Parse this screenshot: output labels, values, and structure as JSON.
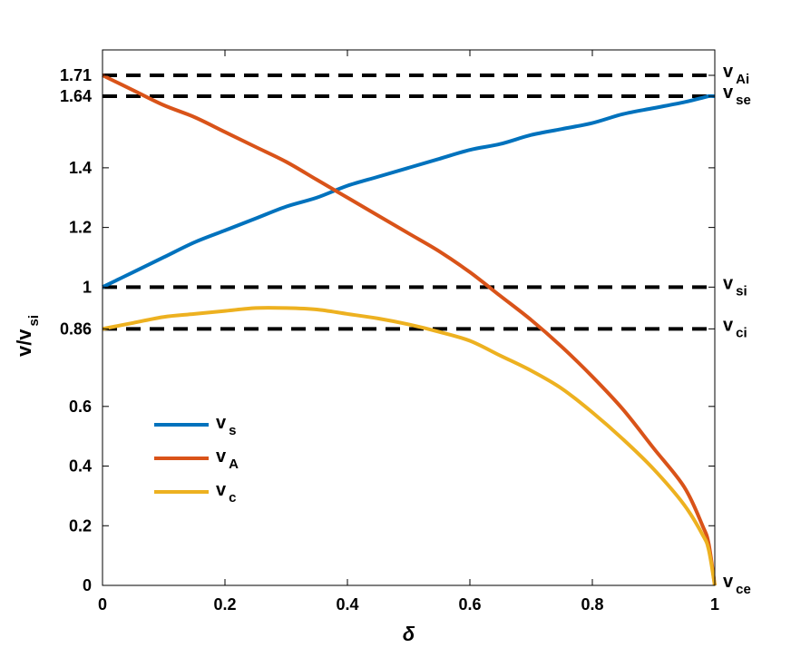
{
  "chart_data": {
    "type": "line",
    "title": "",
    "xlabel": "δ",
    "ylabel": {
      "main": "v/v",
      "sub": "si"
    },
    "xlim": [
      0,
      1
    ],
    "ylim": [
      0,
      1.71
    ],
    "grid": false,
    "legend_position": "bottom-left",
    "xticks": [
      {
        "value": 0,
        "label": "0"
      },
      {
        "value": 0.2,
        "label": "0.2"
      },
      {
        "value": 0.4,
        "label": "0.4"
      },
      {
        "value": 0.6,
        "label": "0.6"
      },
      {
        "value": 0.8,
        "label": "0.8"
      },
      {
        "value": 1,
        "label": "1"
      }
    ],
    "yticks": [
      {
        "value": 0,
        "label": "0"
      },
      {
        "value": 0.2,
        "label": "0.2"
      },
      {
        "value": 0.4,
        "label": "0.4"
      },
      {
        "value": 0.6,
        "label": "0.6"
      },
      {
        "value": 0.86,
        "label": "0.86"
      },
      {
        "value": 1,
        "label": "1"
      },
      {
        "value": 1.2,
        "label": "1.2"
      },
      {
        "value": 1.4,
        "label": "1.4"
      },
      {
        "value": 1.64,
        "label": "1.64"
      },
      {
        "value": 1.71,
        "label": "1.71"
      }
    ],
    "reference_lines": [
      {
        "y": 1.71,
        "label_main": "v",
        "label_sub": "Ai"
      },
      {
        "y": 1.64,
        "label_main": "v",
        "label_sub": "se"
      },
      {
        "y": 1.0,
        "label_main": "v",
        "label_sub": "si"
      },
      {
        "y": 0.86,
        "label_main": "v",
        "label_sub": "ci"
      }
    ],
    "point_labels": [
      {
        "x": 1,
        "y": 0,
        "label_main": "v",
        "label_sub": "ce"
      }
    ],
    "x": [
      0,
      0.05,
      0.1,
      0.15,
      0.2,
      0.25,
      0.3,
      0.35,
      0.4,
      0.45,
      0.5,
      0.55,
      0.6,
      0.65,
      0.7,
      0.75,
      0.8,
      0.85,
      0.9,
      0.95,
      0.98,
      0.99,
      1
    ],
    "series": [
      {
        "name": "s",
        "legend_main": "v",
        "legend_sub": "s",
        "color": "#0072BD",
        "values": [
          1.0,
          1.05,
          1.1,
          1.15,
          1.19,
          1.23,
          1.27,
          1.3,
          1.34,
          1.37,
          1.4,
          1.43,
          1.46,
          1.48,
          1.51,
          1.53,
          1.55,
          1.58,
          1.6,
          1.62,
          1.635,
          1.64,
          1.64
        ]
      },
      {
        "name": "A",
        "legend_main": "v",
        "legend_sub": "A",
        "color": "#D95319",
        "values": [
          1.71,
          1.66,
          1.61,
          1.57,
          1.52,
          1.47,
          1.42,
          1.36,
          1.3,
          1.24,
          1.18,
          1.12,
          1.05,
          0.97,
          0.89,
          0.8,
          0.7,
          0.59,
          0.46,
          0.33,
          0.2,
          0.14,
          0.0
        ]
      },
      {
        "name": "c",
        "legend_main": "v",
        "legend_sub": "c",
        "color": "#EDB120",
        "values": [
          0.86,
          0.88,
          0.9,
          0.91,
          0.92,
          0.93,
          0.93,
          0.925,
          0.91,
          0.895,
          0.875,
          0.85,
          0.82,
          0.77,
          0.72,
          0.66,
          0.58,
          0.49,
          0.39,
          0.27,
          0.17,
          0.12,
          0.0
        ]
      }
    ]
  }
}
